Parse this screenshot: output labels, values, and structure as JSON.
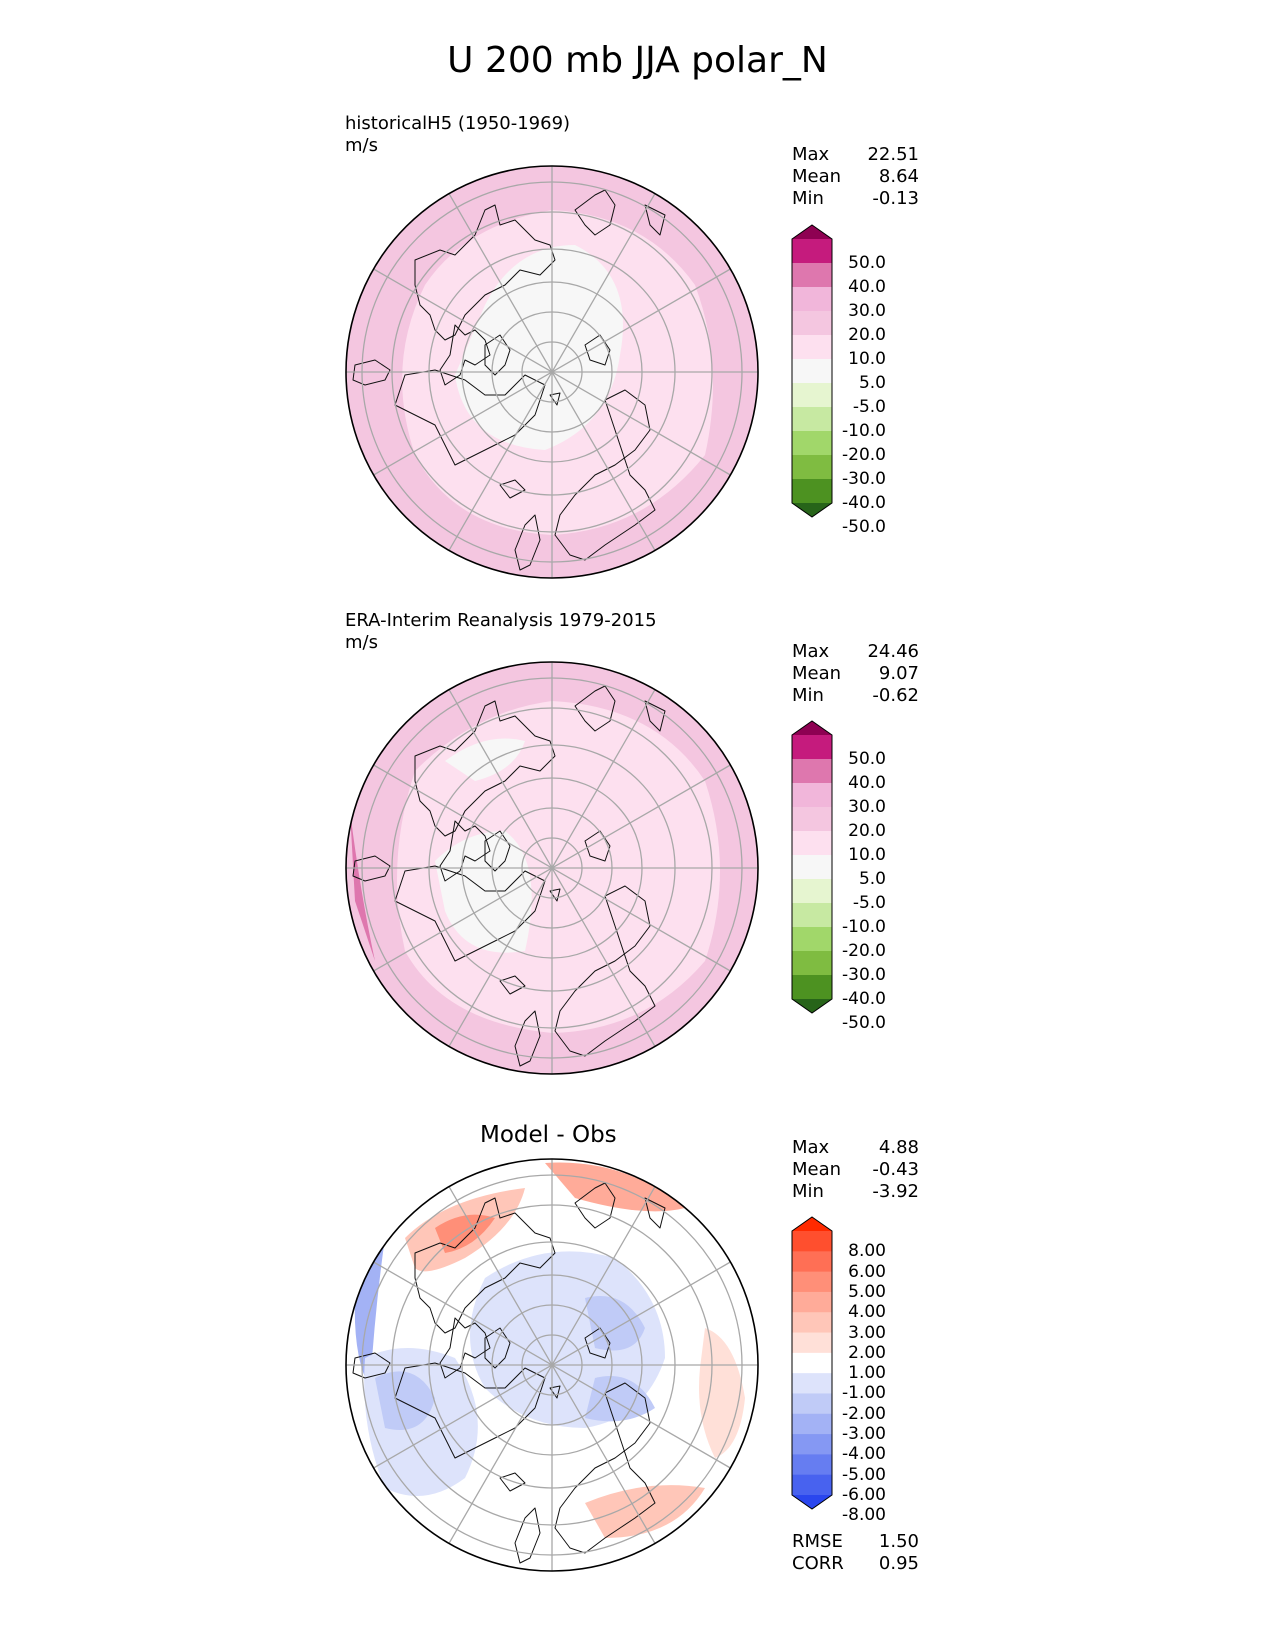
{
  "title": "U 200 mb JJA polar_N",
  "panels": [
    {
      "id": "test",
      "name": "historicalH5 (1950-1969)",
      "units": "m/s",
      "stats": {
        "Max": "22.51",
        "Mean": "8.64",
        "Min": "-0.13"
      },
      "colorbar": {
        "levels": [
          "50.0",
          "40.0",
          "30.0",
          "20.0",
          "10.0",
          "5.0",
          "-5.0",
          "-10.0",
          "-20.0",
          "-30.0",
          "-40.0",
          "-50.0"
        ],
        "colors": [
          "#8e0152",
          "#c51b7d",
          "#de77ae",
          "#f1b6da",
          "#f4c6e0",
          "#fde0ef",
          "#f7f7f7",
          "#e6f5d0",
          "#c7e9a2",
          "#a1d76a",
          "#7fbc41",
          "#4d9221",
          "#276419"
        ]
      }
    },
    {
      "id": "reference",
      "name": "ERA-Interim Reanalysis 1979-2015",
      "units": "m/s",
      "stats": {
        "Max": "24.46",
        "Mean": "9.07",
        "Min": "-0.62"
      },
      "colorbar": {
        "levels": [
          "50.0",
          "40.0",
          "30.0",
          "20.0",
          "10.0",
          "5.0",
          "-5.0",
          "-10.0",
          "-20.0",
          "-30.0",
          "-40.0",
          "-50.0"
        ],
        "colors": [
          "#8e0152",
          "#c51b7d",
          "#de77ae",
          "#f1b6da",
          "#f4c6e0",
          "#fde0ef",
          "#f7f7f7",
          "#e6f5d0",
          "#c7e9a2",
          "#a1d76a",
          "#7fbc41",
          "#4d9221",
          "#276419"
        ]
      }
    },
    {
      "id": "diff",
      "title": "Model - Obs",
      "stats": {
        "Max": "4.88",
        "Mean": "-0.43",
        "Min": "-3.92"
      },
      "metrics": {
        "RMSE": "1.50",
        "CORR": "0.95"
      },
      "colorbar": {
        "levels": [
          "8.00",
          "6.00",
          "5.00",
          "4.00",
          "3.00",
          "2.00",
          "1.00",
          "-1.00",
          "-2.00",
          "-3.00",
          "-4.00",
          "-5.00",
          "-6.00",
          "-8.00"
        ],
        "colors": [
          "#ff2a00",
          "#ff4f2e",
          "#ff6f55",
          "#ff8f78",
          "#ffab99",
          "#ffc6b8",
          "#ffe0d8",
          "#ffffff",
          "#dde3fb",
          "#c0cbf7",
          "#a3b2f5",
          "#8598f3",
          "#667df1",
          "#4862ef",
          "#2a46ee"
        ]
      }
    }
  ],
  "chart_data": [
    {
      "type": "heatmap",
      "projection": "north polar stereographic",
      "title": "historicalH5 (1950-1969)",
      "units": "m/s",
      "variable": "U 200 mb JJA",
      "stats": {
        "max": 22.51,
        "mean": 8.64,
        "min": -0.13
      },
      "contour_levels": [
        -50,
        -40,
        -30,
        -20,
        -10,
        -5,
        5,
        10,
        20,
        30,
        40,
        50
      ]
    },
    {
      "type": "heatmap",
      "projection": "north polar stereographic",
      "title": "ERA-Interim Reanalysis 1979-2015",
      "units": "m/s",
      "variable": "U 200 mb JJA",
      "stats": {
        "max": 24.46,
        "mean": 9.07,
        "min": -0.62
      },
      "contour_levels": [
        -50,
        -40,
        -30,
        -20,
        -10,
        -5,
        5,
        10,
        20,
        30,
        40,
        50
      ]
    },
    {
      "type": "heatmap",
      "projection": "north polar stereographic",
      "title": "Model - Obs",
      "stats": {
        "max": 4.88,
        "mean": -0.43,
        "min": -3.92,
        "rmse": 1.5,
        "corr": 0.95
      },
      "contour_levels": [
        -8,
        -6,
        -5,
        -4,
        -3,
        -2,
        -1,
        1,
        2,
        3,
        4,
        5,
        6,
        8
      ]
    }
  ]
}
